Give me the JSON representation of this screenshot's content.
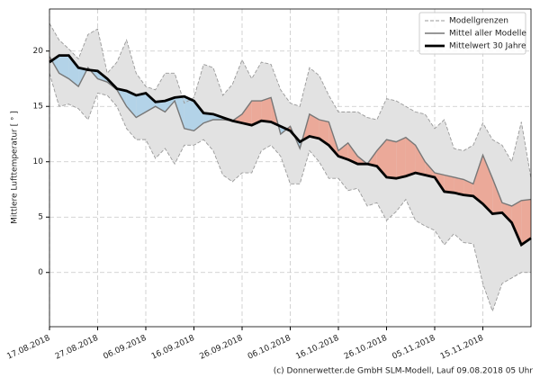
{
  "chart_data": {
    "type": "line-band",
    "y_label": "Mittlere Lufttemperatur [ ° ]",
    "footer": "(c) Donnerwetter.de GmbH SLM-Modell, Lauf 09.08.2018 05 Uhr",
    "x": [
      "17.08.2018",
      "19.08.2018",
      "21.08.2018",
      "23.08.2018",
      "25.08.2018",
      "27.08.2018",
      "29.08.2018",
      "31.08.2018",
      "02.09.2018",
      "04.09.2018",
      "06.09.2018",
      "08.09.2018",
      "10.09.2018",
      "12.09.2018",
      "14.09.2018",
      "16.09.2018",
      "18.09.2018",
      "20.09.2018",
      "22.09.2018",
      "24.09.2018",
      "26.09.2018",
      "28.09.2018",
      "30.09.2018",
      "02.10.2018",
      "04.10.2018",
      "06.10.2018",
      "08.10.2018",
      "10.10.2018",
      "12.10.2018",
      "14.10.2018",
      "16.10.2018",
      "18.10.2018",
      "20.10.2018",
      "22.10.2018",
      "24.10.2018",
      "26.10.2018",
      "28.10.2018",
      "30.10.2018",
      "01.11.2018",
      "03.11.2018",
      "05.11.2018",
      "07.11.2018",
      "09.11.2018",
      "11.11.2018",
      "13.11.2018",
      "15.11.2018",
      "17.11.2018",
      "19.11.2018",
      "21.11.2018",
      "23.11.2018",
      "25.11.2018"
    ],
    "xlim": [
      "17.08.2018",
      "25.11.2018"
    ],
    "xticks": [
      "17.08.2018",
      "27.08.2018",
      "06.09.2018",
      "16.09.2018",
      "26.09.2018",
      "06.10.2018",
      "16.10.2018",
      "26.10.2018",
      "05.11.2018",
      "15.11.2018"
    ],
    "ylim": [
      -4.9,
      23.8
    ],
    "yticks": [
      0,
      5,
      10,
      15,
      20
    ],
    "grid": true,
    "legend": "upper right",
    "above_color": "#eba999",
    "below_color": "#b3d3e8",
    "band_color": "#e2e2e2",
    "series": [
      {
        "name": "Modellgrenzen",
        "color": "#999999",
        "upper": [
          22.5,
          21,
          20.2,
          19.3,
          21.5,
          22,
          18,
          19,
          21,
          18,
          16.8,
          16.5,
          18,
          18,
          15.3,
          15.8,
          18.8,
          18.5,
          16,
          17,
          19.2,
          17.5,
          19,
          18.8,
          16.5,
          15.3,
          15,
          18.5,
          17.8,
          16,
          14.5,
          14.5,
          14.5,
          14,
          13.8,
          15.7,
          15.5,
          15,
          14.5,
          14.3,
          13,
          13.8,
          11.2,
          11,
          11.5,
          13.5,
          12,
          11.5,
          10,
          13.6,
          8.5
        ],
        "lower": [
          18,
          15,
          15.2,
          14.8,
          13.8,
          16.2,
          16,
          15,
          13,
          12,
          12,
          10.3,
          11.2,
          9.8,
          11.5,
          11.5,
          12,
          11,
          8.8,
          8.2,
          9,
          9,
          11,
          11.5,
          10.5,
          8,
          8,
          11,
          10,
          8.5,
          8.5,
          7.4,
          7.6,
          6,
          6.3,
          4.7,
          5.5,
          6.6,
          4.7,
          4.2,
          3.8,
          2.5,
          3.5,
          2.7,
          2.6,
          -1,
          -3.5,
          -1,
          -0.5,
          0,
          0
        ]
      },
      {
        "name": "Mittel aller Modelle",
        "color": "#777777",
        "values": [
          19.5,
          18,
          17.5,
          16.8,
          18.5,
          17.5,
          17.2,
          16.5,
          15,
          14,
          14.5,
          15,
          14.5,
          15.5,
          13,
          12.8,
          13.5,
          13.8,
          13.8,
          13.7,
          14.3,
          15.5,
          15.5,
          15.8,
          12.5,
          13.2,
          11.2,
          14.3,
          13.8,
          13.6,
          11,
          11.7,
          10.5,
          9.8,
          11,
          12,
          11.8,
          12.2,
          11.5,
          10,
          9,
          8.8,
          8.6,
          8.4,
          8,
          10.6,
          8.5,
          6.3,
          6,
          6.5,
          6.6
        ]
      },
      {
        "name": "Mittelwert 30 Jahre",
        "color": "#000000",
        "values": [
          19,
          19.6,
          19.6,
          18.5,
          18.3,
          18.2,
          17.5,
          16.6,
          16.4,
          16,
          16.2,
          15.4,
          15.5,
          15.8,
          15.9,
          15.5,
          14.4,
          14.3,
          14,
          13.7,
          13.5,
          13.3,
          13.7,
          13.6,
          13.2,
          12.8,
          11.8,
          12.3,
          12.1,
          11.5,
          10.5,
          10.2,
          9.8,
          9.8,
          9.6,
          8.6,
          8.5,
          8.7,
          9,
          8.8,
          8.6,
          7.3,
          7.2,
          7,
          6.9,
          6.2,
          5.3,
          5.4,
          4.5,
          2.5,
          3.1
        ]
      }
    ]
  }
}
